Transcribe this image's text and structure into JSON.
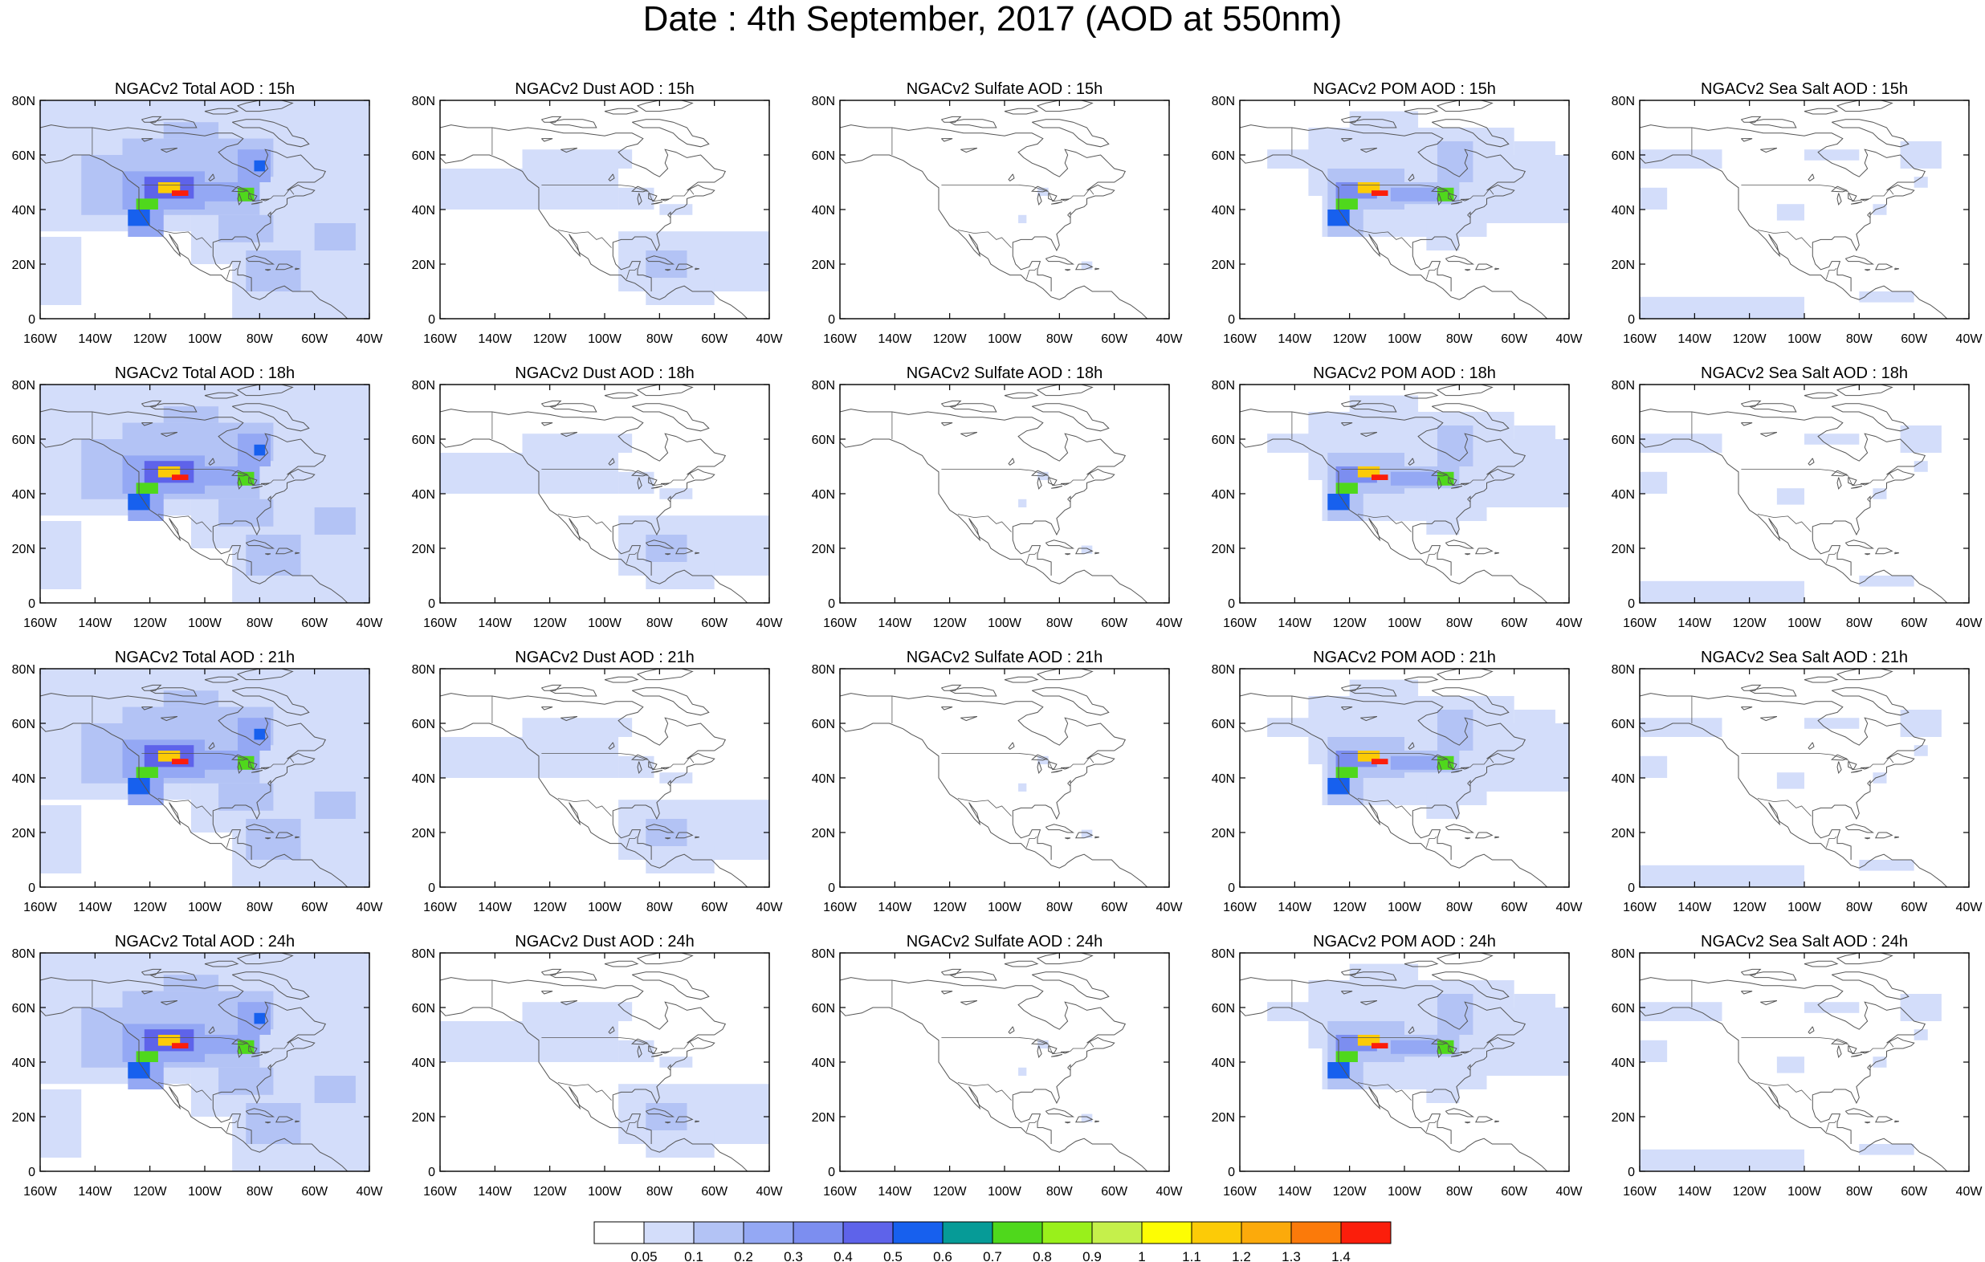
{
  "title": "Date : 4th September, 2017 (AOD at 550nm)",
  "x_ticks": [
    "160W",
    "140W",
    "120W",
    "100W",
    "80W",
    "60W",
    "40W"
  ],
  "y_ticks": [
    "0",
    "20N",
    "40N",
    "60N",
    "80N"
  ],
  "x_range_deg": [
    -160,
    -40
  ],
  "y_range_deg": [
    0,
    80
  ],
  "species": [
    {
      "key": "total",
      "label": "Total"
    },
    {
      "key": "dust",
      "label": "Dust"
    },
    {
      "key": "sulfate",
      "label": "Sulfate"
    },
    {
      "key": "pom",
      "label": "POM"
    },
    {
      "key": "seasalt",
      "label": "Sea Salt"
    }
  ],
  "panel_titles": [
    [
      "NGACv2 Total AOD : 15h",
      "NGACv2 Dust AOD : 15h",
      "NGACv2 Sulfate AOD : 15h",
      "NGACv2 POM AOD : 15h",
      "NGACv2 Sea Salt AOD : 15h"
    ],
    [
      "NGACv2 Total AOD : 18h",
      "NGACv2 Dust AOD : 18h",
      "NGACv2 Sulfate AOD : 18h",
      "NGACv2 POM AOD : 18h",
      "NGACv2 Sea Salt AOD : 18h"
    ],
    [
      "NGACv2 Total AOD : 21h",
      "NGACv2 Dust AOD : 21h",
      "NGACv2 Sulfate AOD : 21h",
      "NGACv2 POM AOD : 21h",
      "NGACv2 Sea Salt AOD : 21h"
    ],
    [
      "NGACv2 Total AOD : 24h",
      "NGACv2 Dust AOD : 24h",
      "NGACv2 Sulfate AOD : 24h",
      "NGACv2 POM AOD : 24h",
      "NGACv2 Sea Salt  AOD : 24h"
    ]
  ],
  "colorbar": {
    "labels": [
      "0.05",
      "0.1",
      "0.2",
      "0.3",
      "0.4",
      "0.5",
      "0.6",
      "0.7",
      "0.8",
      "0.9",
      "1",
      "1.1",
      "1.2",
      "1.3",
      "1.4"
    ],
    "colors": [
      "#ffffff",
      "#d3ddfa",
      "#b3c3f5",
      "#94a8f4",
      "#7c8ef0",
      "#5e63ea",
      "#1760ee",
      "#069b97",
      "#4fd81c",
      "#99f01b",
      "#c5f04b",
      "#fdfd03",
      "#fccb07",
      "#fcaa0b",
      "#fb7a0a",
      "#fb1e0b"
    ]
  },
  "land_color": "#555555"
}
